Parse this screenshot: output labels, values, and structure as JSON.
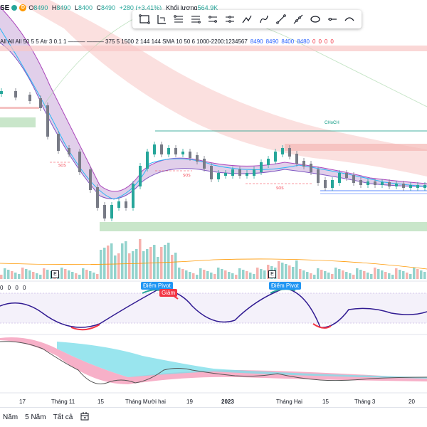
{
  "header": {
    "symbol": "SE",
    "badge": "D",
    "open_k": "O",
    "open": "8490",
    "high_k": "H",
    "high": "8490",
    "low_k": "L",
    "low": "8400",
    "close_k": "C",
    "close": "8490",
    "change": "+280 (+3.41%)",
    "volume_label": "Khối lượng",
    "volume": "564.9K"
  },
  "toolbar": {
    "icons": [
      "rectangle-icon",
      "ruler-icon",
      "long-position-icon",
      "short-position-icon",
      "price-range-icon",
      "path-icon",
      "brush-icon",
      "pencil-icon",
      "line-icon",
      "extended-line-icon",
      "ellipse-icon",
      "horizontal-line-icon",
      "curve-icon"
    ]
  },
  "indicator_line": {
    "params": "All All All 50 5 5 Atr 3 0.1 1 ——— ——— 375 5 1500 2 144 144 SMA 10 50 6 1000-2200:1234567",
    "v1": "8490",
    "v2": "8490",
    "v3": "8400",
    "v4": "8480",
    "z1": "0",
    "z2": "0",
    "z3": "0",
    "z4": "0"
  },
  "oscillator": {
    "header": "0 0 0 0",
    "pivot_label_1": "Điểm Pivot",
    "pivot_label_2": "Điểm Pivot",
    "down_label": "Giảm"
  },
  "annotations": {
    "choch": "CHoCH",
    "sos_1": "SOS",
    "sos_2": "SOS",
    "sos_3": "SOS",
    "earnings": "E"
  },
  "x_axis": {
    "labels": [
      "17",
      "Tháng 11",
      "15",
      "Tháng Mười hai",
      "19",
      "2023",
      "Tháng Hai",
      "15",
      "Tháng 3",
      "20"
    ]
  },
  "bottom_bar": {
    "range_year": "Năm",
    "range_5y": "5 Năm",
    "range_all": "Tất cả",
    "calendar_icon": "calendar-goto-icon"
  },
  "colors": {
    "up": "#26a69a",
    "down": "#787b86",
    "bear_zone": "#f8c6c4",
    "bull_zone": "#a5d6a7",
    "pivot_blue": "#2196f3",
    "down_red": "#f23645",
    "osc_line": "#311b92"
  }
}
